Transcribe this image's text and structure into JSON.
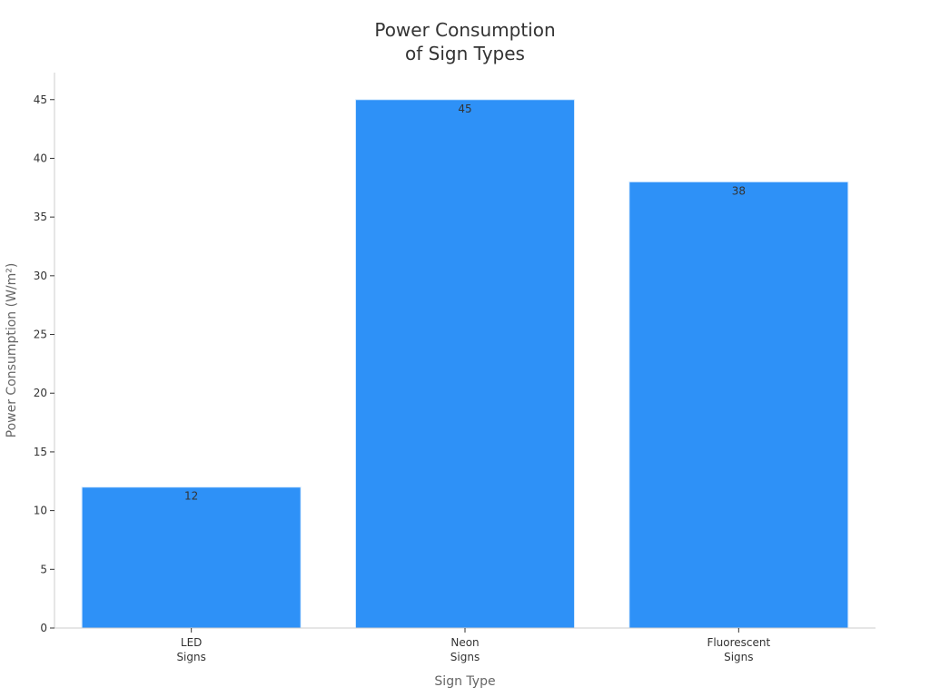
{
  "chart_data": {
    "type": "bar",
    "title": [
      "Power Consumption",
      "of Sign Types"
    ],
    "xlabel": "Sign Type",
    "ylabel": "Power Consumption (W/m²)",
    "categories": [
      [
        "LED",
        "Signs"
      ],
      [
        "Neon",
        "Signs"
      ],
      [
        "Fluorescent",
        "Signs"
      ]
    ],
    "values": [
      12,
      45,
      38
    ],
    "data_labels": [
      "12",
      "45",
      "38"
    ],
    "yticks": [
      0,
      5,
      10,
      15,
      20,
      25,
      30,
      35,
      40,
      45
    ],
    "ylim": [
      0,
      47.3
    ],
    "bar_color": "#2e91f7",
    "grid": false,
    "legend": "none"
  }
}
